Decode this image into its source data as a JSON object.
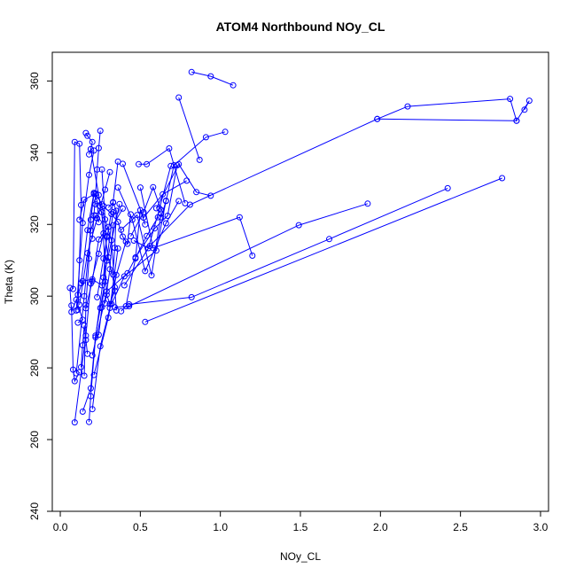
{
  "chart_data": {
    "type": "line",
    "title": "ATOM4 Northbound NOy_CL",
    "xlabel": "NOy_CL",
    "ylabel": "Theta (K)",
    "xlim": [
      -0.05,
      3.05
    ],
    "ylim": [
      240,
      368
    ],
    "xticks": [
      0.0,
      0.5,
      1.0,
      1.5,
      2.0,
      2.5,
      3.0
    ],
    "xtick_labels": [
      "0.0",
      "0.5",
      "1.0",
      "1.5",
      "2.0",
      "2.5",
      "3.0"
    ],
    "yticks": [
      240,
      260,
      280,
      300,
      320,
      340,
      360
    ],
    "ytick_labels": [
      "240",
      "260",
      "280",
      "300",
      "320",
      "340",
      "360"
    ],
    "grid": false,
    "color": "#0000ff",
    "markers": "open-circle",
    "series": [
      {
        "x": [
          0.82,
          0.94,
          1.08
        ],
        "y": [
          362.5,
          361.3,
          358.8
        ]
      },
      {
        "x": [
          0.74,
          0.87
        ],
        "y": [
          355.4,
          338.0
        ]
      },
      {
        "x": [
          1.98,
          2.17,
          2.81,
          2.85,
          2.93,
          2.9
        ],
        "y": [
          349.4,
          352.9,
          355.0,
          348.9,
          354.5,
          352.0
        ]
      },
      {
        "x": [
          0.63,
          0.66,
          0.71,
          0.91,
          1.03
        ],
        "y": [
          322.0,
          326.5,
          336.5,
          344.3,
          345.8
        ]
      },
      {
        "x": [
          0.4,
          0.56,
          0.81,
          1.98,
          2.85
        ],
        "y": [
          303.0,
          314.0,
          325.5,
          349.4,
          348.9
        ]
      },
      {
        "x": [
          0.08,
          0.09,
          0.12,
          0.13,
          0.12,
          0.11
        ],
        "y": [
          302.0,
          343.0,
          342.5,
          325.4,
          310.0,
          296.2
        ]
      },
      {
        "x": [
          0.16,
          0.17,
          0.2,
          0.19,
          0.18
        ],
        "y": [
          345.5,
          344.7,
          343.0,
          341.0,
          339.5
        ]
      },
      {
        "x": [
          0.25,
          0.24,
          0.23,
          0.22,
          0.21,
          0.2
        ],
        "y": [
          346.1,
          341.3,
          335.3,
          328.5,
          322.5,
          316.0
        ]
      },
      {
        "x": [
          0.49,
          0.54,
          0.68,
          0.78
        ],
        "y": [
          336.8,
          336.8,
          341.2,
          325.9
        ]
      },
      {
        "x": [
          0.1,
          0.15,
          0.19,
          0.22
        ],
        "y": [
          278.5,
          300.0,
          318.3,
          322.5
        ]
      },
      {
        "x": [
          0.3,
          0.33,
          0.35,
          0.34,
          0.33
        ],
        "y": [
          324.7,
          326.1,
          323.8,
          313.5,
          306.0
        ]
      },
      {
        "x": [
          0.27,
          0.32,
          0.36,
          0.39,
          0.42,
          0.44
        ],
        "y": [
          325.1,
          322.9,
          320.7,
          316.6,
          314.6,
          322.8
        ]
      },
      {
        "x": [
          0.38,
          0.41,
          0.47,
          0.5,
          0.53
        ],
        "y": [
          295.8,
          297.2,
          310.5,
          324.0,
          320.0
        ]
      },
      {
        "x": [
          0.6,
          0.74,
          0.85,
          0.94
        ],
        "y": [
          324.5,
          336.8,
          329.0,
          328.0
        ]
      },
      {
        "x": [
          0.39,
          0.52,
          0.64,
          0.79
        ],
        "y": [
          336.9,
          321.9,
          328.4,
          332.2
        ]
      },
      {
        "x": [
          0.5,
          0.58,
          1.12,
          1.2
        ],
        "y": [
          330.3,
          313.4,
          322.0,
          311.3
        ]
      },
      {
        "x": [
          0.32,
          0.4,
          0.6,
          0.66
        ],
        "y": [
          297.8,
          305.5,
          312.7,
          326.6
        ]
      },
      {
        "x": [
          0.34,
          0.43,
          1.49,
          1.92
        ],
        "y": [
          296.9,
          297.2,
          319.8,
          325.8
        ]
      },
      {
        "x": [
          0.43,
          0.82,
          1.68,
          2.42
        ],
        "y": [
          297.7,
          299.7,
          315.9,
          330.1
        ]
      },
      {
        "x": [
          0.53,
          2.76
        ],
        "y": [
          292.8,
          332.9
        ]
      },
      {
        "x": [
          0.07,
          0.08,
          0.09,
          0.12
        ],
        "y": [
          297.4,
          279.5,
          276.3,
          278.8
        ]
      },
      {
        "x": [
          0.06,
          0.07,
          0.1,
          0.14,
          0.11
        ],
        "y": [
          302.3,
          295.6,
          299.0,
          293.4,
          292.6
        ]
      },
      {
        "x": [
          0.13,
          0.14,
          0.15,
          0.16,
          0.17
        ],
        "y": [
          280.2,
          286.3,
          291.8,
          287.8,
          283.9
        ]
      },
      {
        "x": [
          0.15,
          0.16,
          0.18,
          0.19,
          0.21
        ],
        "y": [
          277.8,
          297.5,
          310.5,
          321.3,
          328.5
        ]
      },
      {
        "x": [
          0.09,
          0.16,
          0.19,
          0.24,
          0.27
        ],
        "y": [
          264.8,
          289.0,
          303.5,
          311.8,
          317.5
        ]
      },
      {
        "x": [
          0.18,
          0.19,
          0.22,
          0.27,
          0.29
        ],
        "y": [
          264.9,
          272.1,
          288.5,
          305.2,
          316.8
        ]
      },
      {
        "x": [
          0.14,
          0.19,
          0.22,
          0.25,
          0.28
        ],
        "y": [
          267.8,
          274.3,
          289.0,
          296.7,
          304.1
        ]
      },
      {
        "x": [
          0.12,
          0.15,
          0.22,
          0.26,
          0.29
        ],
        "y": [
          321.3,
          326.9,
          328.6,
          325.6,
          316.5
        ]
      },
      {
        "x": [
          0.2,
          0.25,
          0.31,
          0.36
        ],
        "y": [
          268.5,
          286.0,
          296.7,
          313.3
        ]
      },
      {
        "x": [
          0.21,
          0.3,
          0.35,
          0.41
        ],
        "y": [
          278.0,
          294.0,
          305.9,
          315.2
        ]
      },
      {
        "x": [
          0.24,
          0.26,
          0.29,
          0.33
        ],
        "y": [
          289.2,
          296.9,
          309.9,
          323.4
        ]
      },
      {
        "x": [
          0.23,
          0.27,
          0.33,
          0.36
        ],
        "y": [
          299.7,
          310.5,
          326.2,
          337.5
        ]
      },
      {
        "x": [
          0.26,
          0.28,
          0.32,
          0.35
        ],
        "y": [
          335.3,
          321.4,
          315.6,
          296.0
        ]
      },
      {
        "x": [
          0.28,
          0.31,
          0.33,
          0.39
        ],
        "y": [
          298.0,
          307.5,
          319.8,
          324.4
        ]
      },
      {
        "x": [
          0.44,
          0.52,
          0.58,
          0.63
        ],
        "y": [
          316.7,
          323.4,
          330.4,
          324.0
        ]
      },
      {
        "x": [
          0.46,
          0.55,
          0.62,
          0.69
        ],
        "y": [
          315.5,
          313.4,
          324.4,
          336.3
        ]
      },
      {
        "x": [
          0.38,
          0.48,
          0.57,
          0.63
        ],
        "y": [
          318.5,
          322.6,
          305.8,
          323.0
        ]
      },
      {
        "x": [
          0.47,
          0.59,
          0.67,
          0.73
        ],
        "y": [
          310.8,
          318.9,
          322.4,
          336.5
        ]
      },
      {
        "x": [
          0.2,
          0.29,
          0.42,
          0.54,
          0.61
        ],
        "y": [
          283.5,
          301.3,
          306.4,
          316.8,
          322.0
        ]
      },
      {
        "x": [
          0.11,
          0.14,
          0.2,
          0.26,
          0.37
        ],
        "y": [
          300.4,
          304.2,
          304.7,
          303.0,
          325.7
        ]
      },
      {
        "x": [
          0.12,
          0.17,
          0.23,
          0.28,
          0.31
        ],
        "y": [
          297.6,
          312.0,
          321.7,
          329.7,
          334.6
        ]
      },
      {
        "x": [
          0.36,
          0.45,
          0.53,
          0.66,
          0.74
        ],
        "y": [
          330.3,
          321.3,
          307.0,
          320.3,
          326.5
        ]
      },
      {
        "x": [
          0.13,
          0.17,
          0.21,
          0.23,
          0.24
        ],
        "y": [
          303.6,
          318.4,
          328.8,
          326.5,
          320.6
        ]
      },
      {
        "x": [
          0.22,
          0.26,
          0.29,
          0.31,
          0.34
        ],
        "y": [
          325.6,
          323.4,
          300.4,
          297.8,
          301.5
        ]
      },
      {
        "x": [
          0.1,
          0.14,
          0.18,
          0.21
        ],
        "y": [
          296.0,
          320.4,
          333.8,
          340.6
        ]
      },
      {
        "x": [
          0.16,
          0.2,
          0.24,
          0.3
        ],
        "y": [
          296.6,
          304.2,
          315.8,
          319.3
        ]
      },
      {
        "x": [
          0.19,
          0.24,
          0.3,
          0.34
        ],
        "y": [
          341.0,
          328.2,
          310.8,
          302.5
        ]
      }
    ]
  }
}
